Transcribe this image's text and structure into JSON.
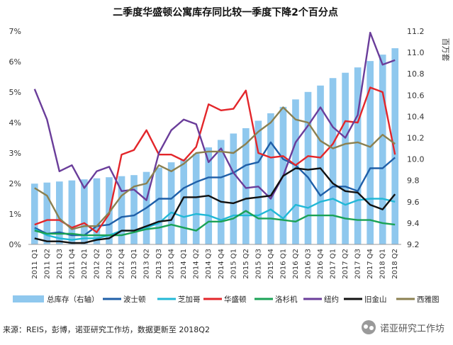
{
  "chart_data": {
    "type": "bar+line",
    "title": "二季度华盛顿公寓库存同比较一季度下降2个百分点",
    "categories": [
      "2011 Q1",
      "2011 Q2",
      "2011 Q3",
      "2011 Q4",
      "2012 Q1",
      "2012 Q2",
      "2012 Q3",
      "2012 Q4",
      "2013 Q1",
      "2013 Q2",
      "2013 Q3",
      "2013 Q4",
      "2014 Q1",
      "2014 Q2",
      "2014 Q3",
      "2014 Q4",
      "2015 Q1",
      "2015 Q2",
      "2015 Q3",
      "2015 Q4",
      "2016 Q1",
      "2016 Q2",
      "2016 Q3",
      "2016 Q4",
      "2017 Q1",
      "2017 Q2",
      "2017 Q3",
      "2017 Q4",
      "2018 Q1",
      "2018 Q2"
    ],
    "left_axis": {
      "ylim": [
        0,
        7
      ],
      "ticks": [
        "0%",
        "1%",
        "2%",
        "3%",
        "4%",
        "5%",
        "6%",
        "7%"
      ]
    },
    "right_axis": {
      "label": "百万套",
      "ylim": [
        9.2,
        11.2
      ],
      "ticks": [
        "9.2",
        "9.4",
        "9.6",
        "9.8",
        "10.0",
        "10.2",
        "10.4",
        "10.6",
        "10.8",
        "11.0",
        "11.2"
      ]
    },
    "bar_series": {
      "name": "总库存（右轴）",
      "color": "#8fc8ee",
      "values": [
        9.77,
        9.78,
        9.79,
        9.8,
        9.81,
        9.82,
        9.83,
        9.84,
        9.85,
        9.88,
        9.92,
        9.97,
        10.0,
        10.05,
        10.11,
        10.18,
        10.24,
        10.29,
        10.36,
        10.43,
        10.49,
        10.56,
        10.63,
        10.69,
        10.76,
        10.81,
        10.86,
        10.92,
        10.98,
        11.04
      ]
    },
    "line_series": [
      {
        "name": "波士顿",
        "color": "#1f5fa8",
        "values": [
          0.55,
          0.35,
          0.4,
          0.3,
          0.3,
          0.6,
          0.65,
          0.9,
          0.95,
          1.2,
          1.5,
          1.5,
          1.85,
          2.05,
          2.2,
          2.2,
          2.35,
          2.6,
          2.7,
          3.35,
          2.8,
          2.6,
          2.2,
          1.6,
          1.9,
          1.9,
          1.75,
          2.5,
          2.5,
          2.85
        ]
      },
      {
        "name": "芝加哥",
        "color": "#22b8d6",
        "values": [
          0.5,
          0.3,
          0.2,
          0.15,
          0.2,
          0.2,
          0.3,
          0.45,
          0.45,
          0.55,
          0.7,
          1.05,
          0.9,
          1.0,
          0.95,
          0.8,
          0.95,
          0.95,
          0.95,
          1.15,
          0.85,
          1.3,
          1.2,
          1.4,
          1.5,
          1.3,
          1.45,
          1.5,
          1.5,
          1.4
        ]
      },
      {
        "name": "华盛顿",
        "color": "#e3262a",
        "values": [
          0.65,
          0.8,
          0.8,
          0.55,
          0.7,
          0.4,
          1.0,
          2.95,
          3.1,
          3.75,
          2.95,
          2.95,
          2.75,
          3.2,
          4.6,
          4.4,
          4.45,
          5.05,
          3.0,
          2.85,
          2.9,
          2.6,
          2.9,
          2.85,
          3.3,
          4.05,
          4.0,
          5.15,
          5.0,
          2.95
        ]
      },
      {
        "name": "洛杉机",
        "color": "#1aa256",
        "values": [
          0.45,
          0.35,
          0.35,
          0.35,
          0.3,
          0.3,
          0.3,
          0.3,
          0.4,
          0.5,
          0.55,
          0.65,
          0.55,
          0.45,
          0.75,
          0.75,
          0.85,
          1.1,
          0.85,
          0.85,
          0.8,
          0.75,
          0.95,
          0.95,
          0.95,
          0.85,
          0.8,
          0.8,
          0.7,
          0.65
        ]
      },
      {
        "name": "纽约",
        "color": "#6a3d9a",
        "values": [
          5.1,
          4.1,
          2.4,
          2.6,
          1.85,
          2.4,
          2.55,
          1.75,
          1.8,
          1.45,
          3.0,
          3.75,
          4.1,
          3.95,
          2.7,
          3.15,
          2.35,
          1.85,
          1.9,
          1.5,
          2.25,
          3.35,
          3.9,
          4.5,
          3.85,
          3.5,
          4.25,
          6.95,
          5.9,
          6.05
        ]
      },
      {
        "name": "旧金山",
        "color": "#111111",
        "values": [
          0.2,
          0.1,
          0.1,
          0.05,
          0.05,
          0.15,
          0.2,
          0.45,
          0.45,
          0.6,
          0.75,
          0.8,
          1.55,
          1.55,
          1.6,
          1.4,
          1.35,
          1.5,
          1.55,
          1.6,
          2.25,
          2.5,
          2.45,
          2.5,
          2.0,
          1.75,
          1.7,
          1.3,
          1.15,
          1.65
        ]
      },
      {
        "name": "西雅图",
        "color": "#8b8050",
        "values": [
          1.85,
          1.6,
          0.85,
          0.5,
          0.6,
          0.6,
          1.05,
          1.6,
          1.9,
          2.0,
          2.6,
          2.4,
          2.65,
          3.0,
          3.05,
          3.05,
          3.0,
          3.3,
          3.7,
          4.0,
          4.5,
          4.1,
          4.0,
          3.4,
          3.15,
          3.3,
          3.35,
          3.2,
          3.6,
          3.3
        ]
      }
    ]
  },
  "footer": {
    "source": "来源：REIS，彭博，诺亚研究工作坊，数据更新至 2018Q2",
    "brand": "诺亚研究工作坊"
  }
}
